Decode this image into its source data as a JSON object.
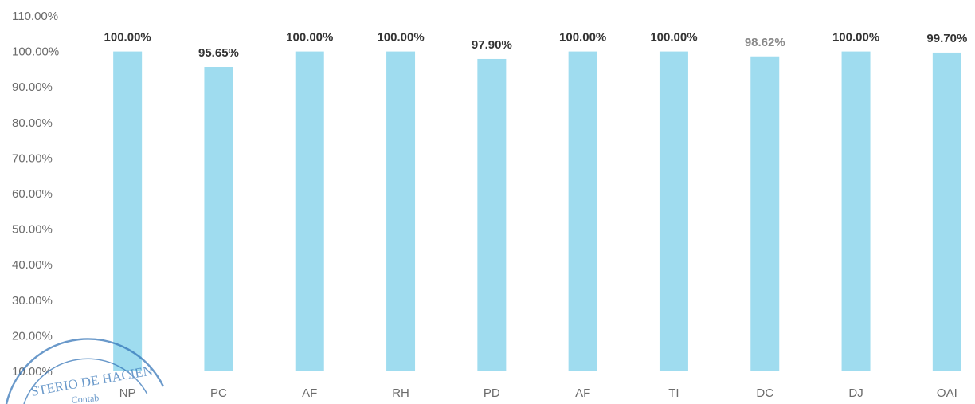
{
  "chart_data": {
    "type": "bar",
    "title": "",
    "xlabel": "",
    "ylabel": "",
    "categories": [
      "NP",
      "PC",
      "AF",
      "RH",
      "PD",
      "AF",
      "TI",
      "DC",
      "DJ",
      "OAI"
    ],
    "values": [
      100.0,
      95.65,
      100.0,
      100.0,
      97.9,
      100.0,
      100.0,
      98.62,
      100.0,
      99.7
    ],
    "data_labels": [
      "100.00%",
      "95.65%",
      "100.00%",
      "100.00%",
      "97.90%",
      "100.00%",
      "100.00%",
      "98.62%",
      "100.00%",
      "99.70%"
    ],
    "yticks": [
      "10.00%",
      "20.00%",
      "30.00%",
      "40.00%",
      "50.00%",
      "60.00%",
      "70.00%",
      "80.00%",
      "90.00%",
      "100.00%",
      "110.00%"
    ],
    "ylim": [
      10,
      110
    ],
    "grid": false,
    "legend": "none",
    "colors": {
      "bar": "#9fdcef",
      "label": "#333333",
      "label_muted": "#888888"
    }
  },
  "stamp": {
    "text": "STERIO DE HACIEN · Contab"
  }
}
